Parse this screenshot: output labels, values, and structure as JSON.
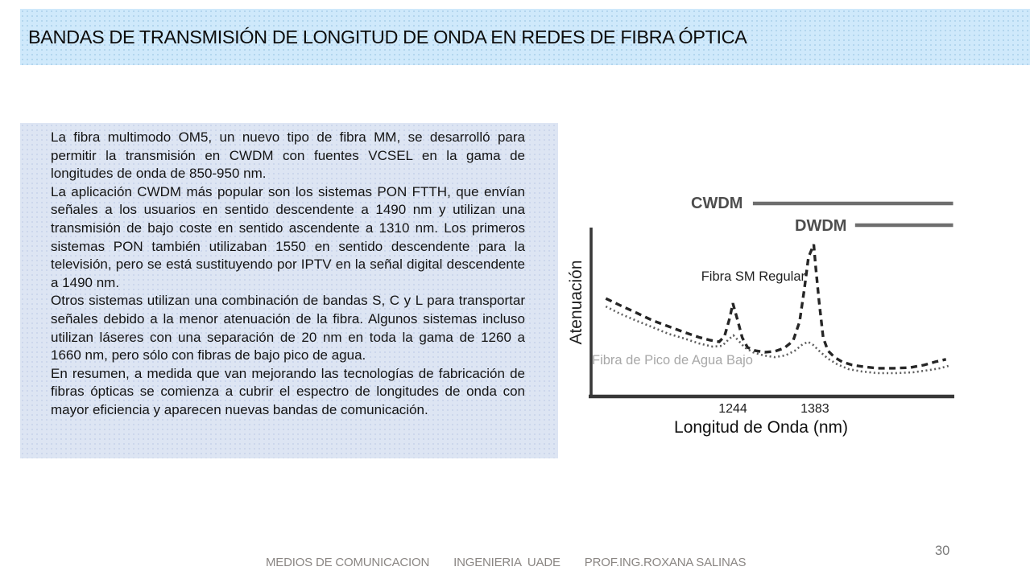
{
  "slide": {
    "title": "BANDAS DE TRANSMISIÓN DE LONGITUD DE ONDA EN REDES DE FIBRA ÓPTICA",
    "page_number": "30",
    "footer_items": [
      "MEDIOS DE COMUNICACION",
      "INGENIERIA  UADE",
      "PROF.ING.ROXANA SALINAS"
    ],
    "body_paragraphs": [
      "La fibra multimodo OM5, un nuevo tipo de fibra MM, se desarrolló para permitir la transmisión en CWDM con fuentes VCSEL en la gama de longitudes de onda de 850-950 nm.",
      "La aplicación CWDM más popular son los sistemas PON FTTH, que envían señales a los usuarios en sentido descendente a 1490 nm y utilizan una transmisión de bajo coste en sentido ascendente a 1310 nm. Los primeros sistemas PON también utilizaban 1550 en sentido descendente para la televisión, pero se está sustituyendo por IPTV en la señal digital descendente a 1490 nm.",
      "Otros sistemas utilizan una combinación de bandas S, C y L para transportar señales debido a la menor atenuación de la fibra. Algunos sistemas incluso utilizan láseres con una separación de 20 nm en toda la gama de 1260 a 1660 nm, pero sólo con fibras de bajo pico de agua.",
      "En resumen, a medida que van mejorando las tecnologías de fabricación de fibras ópticas se comienza a cubrir el espectro de longitudes de onda con mayor eficiencia y aparecen nuevas bandas de comunicación."
    ],
    "colors": {
      "title_bar_bg": "#cfe9fb",
      "text_box_bg": "#dde5f3",
      "footer_text": "#8a8683",
      "band_line_gray": "#6e6e6e"
    }
  },
  "chart_data": {
    "type": "line",
    "title": "",
    "xlabel": "Longitud de Onda (nm)",
    "ylabel": "Atenuación",
    "x_ticks": [
      1244,
      1383
    ],
    "x_range": [
      1004,
      1619
    ],
    "y_range": [
      0,
      100
    ],
    "y_units": "arbitrary (atenuación relativa, sin escala)",
    "grid": false,
    "legend_position": "inline-labels",
    "band_annotations": [
      {
        "label": "CWDM",
        "x_start": 1278,
        "x_end": 1617
      },
      {
        "label": "DWDM",
        "x_start": 1451,
        "x_end": 1617
      }
    ],
    "series": [
      {
        "name": "Fibra SM Regular",
        "style": "dashed",
        "color": "#262626",
        "peaks_nm": [
          1244,
          1383
        ],
        "points": [
          [
            1029,
            58
          ],
          [
            1053,
            54
          ],
          [
            1081,
            49.5
          ],
          [
            1108,
            45
          ],
          [
            1135,
            41.5
          ],
          [
            1162,
            38
          ],
          [
            1187,
            35
          ],
          [
            1206,
            33.3
          ],
          [
            1221,
            32.4
          ],
          [
            1230,
            35.7
          ],
          [
            1239,
            46.7
          ],
          [
            1244,
            55.2
          ],
          [
            1252,
            45.2
          ],
          [
            1260,
            34.8
          ],
          [
            1269,
            29
          ],
          [
            1282,
            27.1
          ],
          [
            1298,
            26.2
          ],
          [
            1315,
            26.7
          ],
          [
            1331,
            28.6
          ],
          [
            1346,
            32.9
          ],
          [
            1357,
            44.3
          ],
          [
            1365,
            63.3
          ],
          [
            1372,
            82.4
          ],
          [
            1381,
            90
          ],
          [
            1384,
            77.6
          ],
          [
            1390,
            56.2
          ],
          [
            1397,
            34.8
          ],
          [
            1405,
            27.1
          ],
          [
            1416,
            23.3
          ],
          [
            1429,
            20.5
          ],
          [
            1446,
            18.6
          ],
          [
            1465,
            17.6
          ],
          [
            1489,
            16.7
          ],
          [
            1517,
            16.7
          ],
          [
            1544,
            17.1
          ],
          [
            1568,
            18.6
          ],
          [
            1587,
            20.5
          ],
          [
            1605,
            22
          ]
        ]
      },
      {
        "name": "Fibra de Pico de Agua Bajo",
        "style": "dotted",
        "color": "#5f5f5f",
        "label_color": "#a8a8a8",
        "points": [
          [
            1029,
            53.3
          ],
          [
            1053,
            49
          ],
          [
            1081,
            44.8
          ],
          [
            1108,
            41
          ],
          [
            1135,
            37.1
          ],
          [
            1162,
            34.3
          ],
          [
            1187,
            31.4
          ],
          [
            1210,
            29.5
          ],
          [
            1226,
            30
          ],
          [
            1237,
            33.8
          ],
          [
            1245,
            36.2
          ],
          [
            1254,
            32.9
          ],
          [
            1264,
            29
          ],
          [
            1278,
            26.2
          ],
          [
            1296,
            24.3
          ],
          [
            1315,
            23.3
          ],
          [
            1333,
            24.3
          ],
          [
            1349,
            27.1
          ],
          [
            1361,
            30.5
          ],
          [
            1371,
            32.4
          ],
          [
            1380,
            30.5
          ],
          [
            1391,
            26.7
          ],
          [
            1405,
            22.4
          ],
          [
            1421,
            19
          ],
          [
            1440,
            16.2
          ],
          [
            1462,
            14.8
          ],
          [
            1489,
            13.8
          ],
          [
            1519,
            13.8
          ],
          [
            1549,
            14.3
          ],
          [
            1578,
            15.7
          ],
          [
            1595,
            16.7
          ],
          [
            1609,
            18.1
          ]
        ]
      }
    ]
  }
}
